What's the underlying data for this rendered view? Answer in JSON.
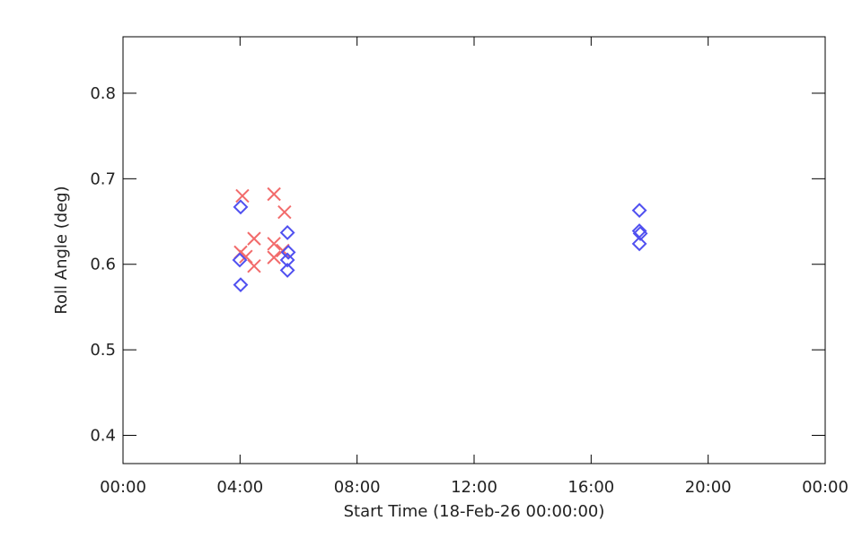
{
  "chart_data": {
    "type": "scatter",
    "xlabel": "Start Time (18-Feb-26 00:00:00)",
    "ylabel": "Roll Angle (deg)",
    "xlim": [
      0,
      24
    ],
    "ylim": [
      0.367,
      0.866
    ],
    "xticks": [
      {
        "value": 0,
        "label": "00:00"
      },
      {
        "value": 4,
        "label": "04:00"
      },
      {
        "value": 8,
        "label": "08:00"
      },
      {
        "value": 12,
        "label": "12:00"
      },
      {
        "value": 16,
        "label": "16:00"
      },
      {
        "value": 20,
        "label": "20:00"
      },
      {
        "value": 24,
        "label": "00:00"
      }
    ],
    "yticks": [
      0.4,
      0.5,
      0.6,
      0.7,
      0.8
    ],
    "series": [
      {
        "color": "#f26b6b",
        "marker": "x",
        "x": [
          4.08,
          5.16,
          5.52,
          4.02,
          4.48,
          4.2,
          4.48,
          5.16,
          5.16,
          5.46
        ],
        "values": [
          0.68,
          0.682,
          0.661,
          0.614,
          0.63,
          0.609,
          0.598,
          0.624,
          0.608,
          0.616
        ]
      },
      {
        "color": "#5050f0",
        "marker": "diamond",
        "x": [
          4.02,
          3.99,
          4.02,
          5.62,
          5.65,
          5.62,
          5.62,
          17.65,
          17.65,
          17.68,
          17.65
        ],
        "values": [
          0.667,
          0.605,
          0.576,
          0.637,
          0.614,
          0.605,
          0.593,
          0.663,
          0.639,
          0.636,
          0.624
        ]
      }
    ]
  }
}
